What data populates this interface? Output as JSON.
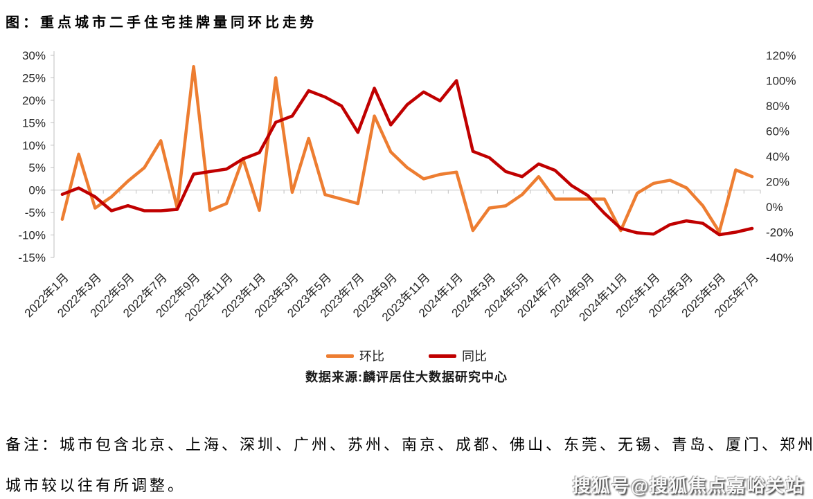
{
  "title": "图：重点城市二手住宅挂牌量同环比走势",
  "chart_data": {
    "type": "line",
    "x_start": "2022年1月",
    "x_end": "2025年7月",
    "x_interval": "monthly",
    "n_points": 43,
    "x_tick_labels": [
      "2022年1月",
      "2022年3月",
      "2022年5月",
      "2022年7月",
      "2022年9月",
      "2022年11月",
      "2023年1月",
      "2023年3月",
      "2023年5月",
      "2023年7月",
      "2023年9月",
      "2023年11月",
      "2024年1月",
      "2024年3月",
      "2024年5月",
      "2024年7月",
      "2024年9月",
      "2024年11月",
      "2025年1月",
      "2025年3月",
      "2025年5月",
      "2025年7月"
    ],
    "left_axis": {
      "min": -15,
      "max": 30,
      "step": 5,
      "ticks": [
        "30%",
        "25%",
        "20%",
        "15%",
        "10%",
        "5%",
        "0%",
        "-5%",
        "-10%",
        "-15%"
      ],
      "series": "环比"
    },
    "right_axis": {
      "min": -40,
      "max": 120,
      "step": 20,
      "ticks": [
        "120%",
        "100%",
        "80%",
        "60%",
        "40%",
        "20%",
        "0%",
        "-20%",
        "-40%"
      ],
      "series": "同比"
    },
    "grid": "single horizontal zero line",
    "legend_position": "bottom-center",
    "series": [
      {
        "name": "环比",
        "axis": "left",
        "color": "#ED7D31",
        "values": [
          -6.5,
          8,
          -4,
          -1.5,
          2,
          5,
          11,
          -4,
          27.5,
          -4.5,
          -3,
          7,
          -4.5,
          25,
          -0.5,
          11.5,
          -1,
          -2,
          -3,
          16.5,
          8.5,
          5,
          2.5,
          3.5,
          4,
          -9,
          -4,
          -3.5,
          -1,
          3,
          -2,
          -2,
          -2,
          -2,
          -9,
          -0.7,
          1.5,
          2.2,
          0.5,
          -3.5,
          -9.3,
          4.5,
          3
        ]
      },
      {
        "name": "同比",
        "axis": "right",
        "color": "#C00000",
        "values": [
          10,
          15,
          8,
          -3,
          1,
          -3,
          -3,
          -2,
          26,
          28,
          30,
          38,
          43,
          67,
          72,
          92,
          87,
          80,
          59,
          94,
          65,
          81,
          91,
          84,
          100,
          44,
          39,
          28,
          24,
          34,
          29,
          17,
          9,
          -5,
          -17,
          -20.5,
          -21.5,
          -14,
          -11,
          -13,
          -22,
          -20,
          -17
        ]
      }
    ],
    "legend": [
      {
        "label": "环比",
        "color": "#ED7D31"
      },
      {
        "label": "同比",
        "color": "#C00000"
      }
    ],
    "source": "数据来源:麟评居住大数据研究中心"
  },
  "notes": {
    "line1": "备注：城市包含北京、上海、深圳、广州、苏州、南京、成都、佛山、东莞、无锡、青岛、厦门、郑州，",
    "line2": "城市较以往有所调整。"
  },
  "watermark": "搜狐号@搜狐焦点嘉峪关站",
  "colors": {
    "accent_orange": "#ED7D31",
    "accent_red": "#C00000",
    "gridline": "#D9D9D9",
    "axis_tick": "#BFBFBF",
    "axis_text": "#262626"
  }
}
